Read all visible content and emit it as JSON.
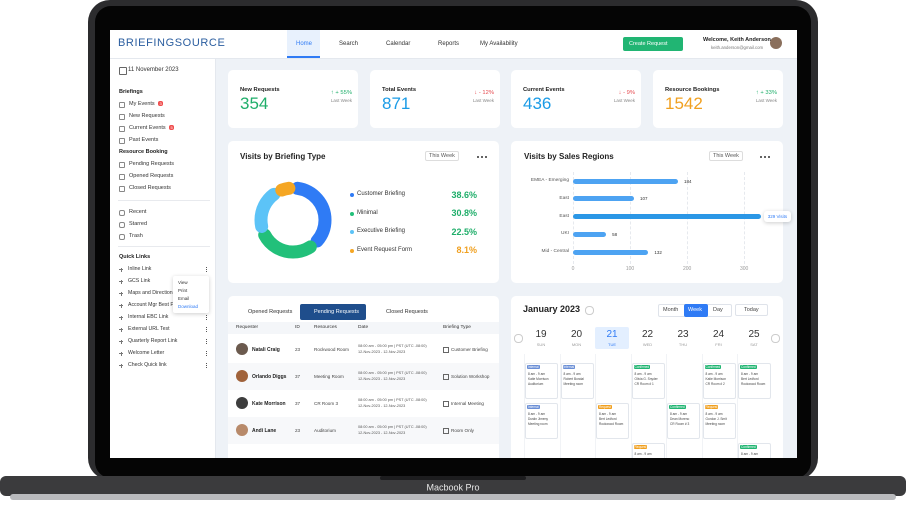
{
  "device": "Macbook Pro",
  "header": {
    "logo": "BRIEFINGSOURCE",
    "nav": [
      "Home",
      "Search",
      "Calendar",
      "Reports",
      "My Availability"
    ],
    "button": "Create Request",
    "welcome": "Welcome, Keith Anderson",
    "email": "keith.anderson@gmail.com"
  },
  "sidebar": {
    "date": "11 November 2023",
    "sections": [
      {
        "title": "Briefings",
        "items": [
          {
            "label": "My Events",
            "badge": "3"
          },
          {
            "label": "New Requests"
          },
          {
            "label": "Current Events",
            "badge": "5"
          },
          {
            "label": "Past Events"
          }
        ]
      },
      {
        "title": "Resource Booking",
        "items": [
          {
            "label": "Pending Requests"
          },
          {
            "label": "Opened Requests"
          },
          {
            "label": "Closed Requests"
          }
        ]
      }
    ],
    "other": [
      "Recent",
      "Starred",
      "Trash"
    ],
    "quick_links": {
      "title": "Quick Links",
      "items": [
        "Inline Link",
        "GCS Link",
        "Maps and Directions",
        "Account Mgr Best P",
        "Internal EBC Link",
        "External URL Test",
        "Quarterly Report Link",
        "Welcome Letter",
        "Check Quick link"
      ]
    },
    "menu": [
      "View",
      "Print",
      "Email",
      "Download"
    ]
  },
  "stats": [
    {
      "label": "New Requests",
      "value": 354,
      "change": "↑ + 55%",
      "period": "Last Week"
    },
    {
      "label": "Total Events",
      "value": 871,
      "change": "↓ - 12%",
      "period": "Last Week"
    },
    {
      "label": "Current Events",
      "value": 436,
      "change": "↓ - 9%",
      "period": "Last Week"
    },
    {
      "label": "Resource Bookings",
      "value": 1542,
      "change": "↑ + 33%",
      "period": "Last Week"
    }
  ],
  "briefing_chart": {
    "type": "donut",
    "title": "Visits by Briefing Type",
    "filter": "This Week",
    "labels": [
      "Customer Briefing",
      "Minimal",
      "Executive Briefing",
      "Event Request Form"
    ],
    "values": [
      38.6,
      30.8,
      22.5,
      8.1
    ],
    "value_labels": [
      "38.6%",
      "30.8%",
      "22.5%",
      "8.1%"
    ],
    "colors": [
      "#2f7bf5",
      "#22c07a",
      "#5cc3f7",
      "#f5a623"
    ],
    "value_colors": [
      "#1fae6a",
      "#1fae6a",
      "#1fae6a",
      "#f0a020"
    ]
  },
  "region_chart": {
    "type": "hbar",
    "title": "Visits by Sales Regions",
    "filter": "This Week",
    "categories": [
      "EMEA - Emerging",
      "East",
      "East",
      "UKI",
      "Mid - Central"
    ],
    "values": [
      184,
      107,
      329,
      58,
      132
    ],
    "value_labels": [
      "184",
      "107",
      "329 Visits",
      "58",
      "132"
    ],
    "color": "#4da3f2",
    "xlim": [
      0,
      340
    ],
    "xticks": [
      0,
      100,
      200,
      300
    ]
  },
  "table": {
    "tabs": [
      "Opened Requests",
      "Pending Requests",
      "Closed Requests"
    ],
    "columns": [
      "Requester",
      "ID",
      "Resources",
      "Date",
      "Briefing Type"
    ],
    "rows": [
      [
        "Natali Craig",
        "23",
        "Rockwood Room",
        "08:00 am - 05:00 pm | PST (UTC -08:00)",
        "12-Nov-2023 - 12-Nov-2023",
        "Customer Briefing"
      ],
      [
        "Orlando Diggs",
        "37",
        "Meeting Room",
        "08:00 am - 05:00 pm | PST (UTC -08:00)",
        "12-Nov-2023 - 12-Nov-2023",
        "Solution Workshop"
      ],
      [
        "Kate Morrison",
        "37",
        "CR Room 3",
        "08:00 am - 05:00 pm | PST (UTC -08:00)",
        "12-Nov-2023 - 12-Nov-2023",
        "Internal Meeting"
      ],
      [
        "Andi Lane",
        "23",
        "Auditorium",
        "08:00 am - 05:00 pm | PST (UTC -08:00)",
        "12-Nov-2023 - 12-Nov-2023",
        "Room Only"
      ]
    ]
  },
  "calendar": {
    "title": "January 2023",
    "views": [
      "Month",
      "Week",
      "Day"
    ],
    "today": "Today",
    "days": [
      [
        "19",
        "SUN"
      ],
      [
        "20",
        "MON"
      ],
      [
        "21",
        "TUE"
      ],
      [
        "22",
        "WED"
      ],
      [
        "23",
        "THU"
      ],
      [
        "24",
        "FRI"
      ],
      [
        "25",
        "SAT"
      ]
    ],
    "events": [
      {
        "col": 0,
        "row": 0,
        "status": "Internal",
        "lines": [
          "8 am - 9 am",
          "Katie Morrison",
          "Auditorium"
        ]
      },
      {
        "col": 1,
        "row": 0,
        "status": "Internal",
        "lines": [
          "8 am - 9 am",
          "Robert Bondal",
          "Meeting room"
        ]
      },
      {
        "col": 3,
        "row": 0,
        "status": "Confirmed",
        "lines": [
          "8 am - 9 am",
          "Olivia G. Snyder",
          "CR Room # 1"
        ]
      },
      {
        "col": 5,
        "row": 0,
        "status": "Confirmed",
        "lines": [
          "8 am - 9 am",
          "Katie Morrison",
          "CR Room # 2"
        ]
      },
      {
        "col": 6,
        "row": 0,
        "status": "Confirmed",
        "lines": [
          "8 am - 9 am",
          "Bert Ledford",
          "Rockwood Room"
        ]
      },
      {
        "col": 0,
        "row": 1,
        "status": "Internal",
        "lines": [
          "8 am - 9 am",
          "Dustin Jimeny",
          "Meeting room"
        ]
      },
      {
        "col": 2,
        "row": 1,
        "status": "Request",
        "lines": [
          "8 am - 9 am",
          "Bert Ledford",
          "Rockwood Room"
        ]
      },
      {
        "col": 4,
        "row": 1,
        "status": "Confirmed",
        "lines": [
          "8 am - 9 am",
          "Dean Moreno",
          "CR Room # 3"
        ]
      },
      {
        "col": 5,
        "row": 1,
        "status": "Request",
        "lines": [
          "8 am - 9 am",
          "Gordon J. Smit",
          "Meeting room"
        ]
      },
      {
        "col": 3,
        "row": 2,
        "status": "Request",
        "lines": [
          "8 am - 9 am"
        ]
      },
      {
        "col": 6,
        "row": 2,
        "status": "Confirmed",
        "lines": [
          "8 am - 9 am"
        ]
      }
    ]
  }
}
